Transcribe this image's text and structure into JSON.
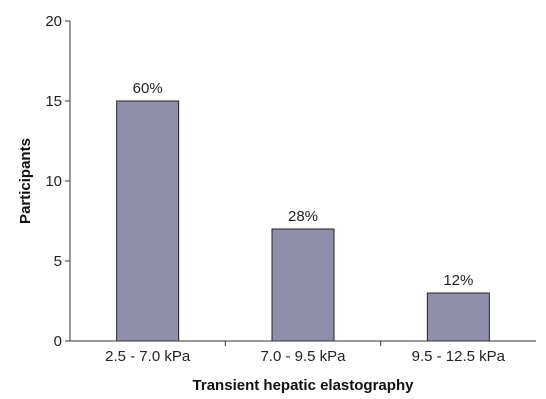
{
  "chart_data": {
    "type": "bar",
    "title": "",
    "xlabel": "Transient hepatic elastography",
    "ylabel": "Participants",
    "categories": [
      "2.5 - 7.0 kPa",
      "7.0 - 9.5 kPa",
      "9.5 - 12.5 kPa"
    ],
    "values": [
      15,
      7,
      3
    ],
    "data_labels": [
      "60%",
      "28%",
      "12%"
    ],
    "ylim": [
      0,
      20
    ],
    "yticks": [
      0,
      5,
      10,
      15,
      20
    ],
    "grid": false,
    "legend": "none",
    "bar_color": "#8f8fab",
    "bar_edge_color": "#222222"
  }
}
